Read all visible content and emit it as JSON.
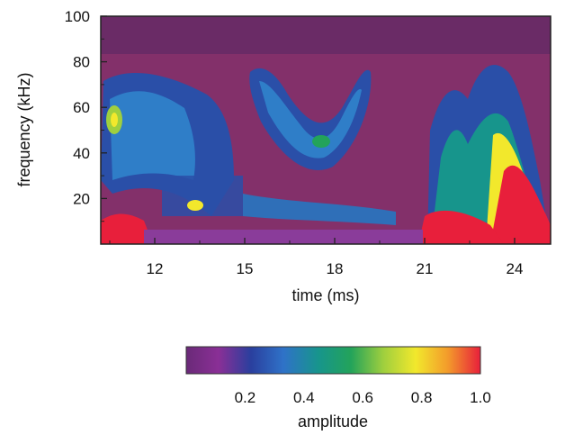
{
  "chart_data": {
    "type": "heatmap",
    "title": "",
    "xlabel": "time (ms)",
    "ylabel": "frequency (kHz)",
    "xlim": [
      10.2,
      25.2
    ],
    "ylim": [
      0,
      100
    ],
    "x_ticks": [
      12,
      15,
      18,
      21,
      24
    ],
    "x_tick_labels": [
      "12",
      "15",
      "18",
      "21",
      "24"
    ],
    "y_ticks": [
      20,
      40,
      60,
      80,
      100
    ],
    "y_tick_labels": [
      "20",
      "40",
      "60",
      "80",
      "100"
    ],
    "grid": false,
    "colorscale": {
      "label": "amplitude",
      "range": [
        0,
        1
      ],
      "ticks": [
        0.2,
        0.4,
        0.6,
        0.8,
        1.0
      ],
      "tick_labels": [
        "0.2",
        "0.4",
        "0.6",
        "0.8",
        "1.0"
      ],
      "colors": [
        "#6a2a78",
        "#8a2f96",
        "#2a3f9e",
        "#2f72c8",
        "#17958c",
        "#23a35a",
        "#9fcf3e",
        "#f2e82c",
        "#f39a2b",
        "#e81f3b"
      ]
    },
    "features": [
      {
        "name": "low-frequency band",
        "time_range_ms": [
          10.2,
          25.2
        ],
        "frequency_khz": [
          0,
          12
        ],
        "amplitude": 0.9
      },
      {
        "name": "downward sweep",
        "time_range_ms": [
          10.8,
          14.5
        ],
        "frequency_khz": [
          25,
          70
        ],
        "amplitude": 0.35
      },
      {
        "name": "U-shaped sweep",
        "time_range_ms": [
          14.8,
          20.4
        ],
        "frequency_khz": [
          38,
          70
        ],
        "amplitude": 0.3
      },
      {
        "name": "sweep peak",
        "time_ms": 17.1,
        "frequency_khz": 44,
        "amplitude": 0.55
      },
      {
        "name": "high-energy burst",
        "time_range_ms": [
          20.8,
          25.2
        ],
        "frequency_khz": [
          0,
          75
        ],
        "amplitude": 1.0
      }
    ]
  }
}
